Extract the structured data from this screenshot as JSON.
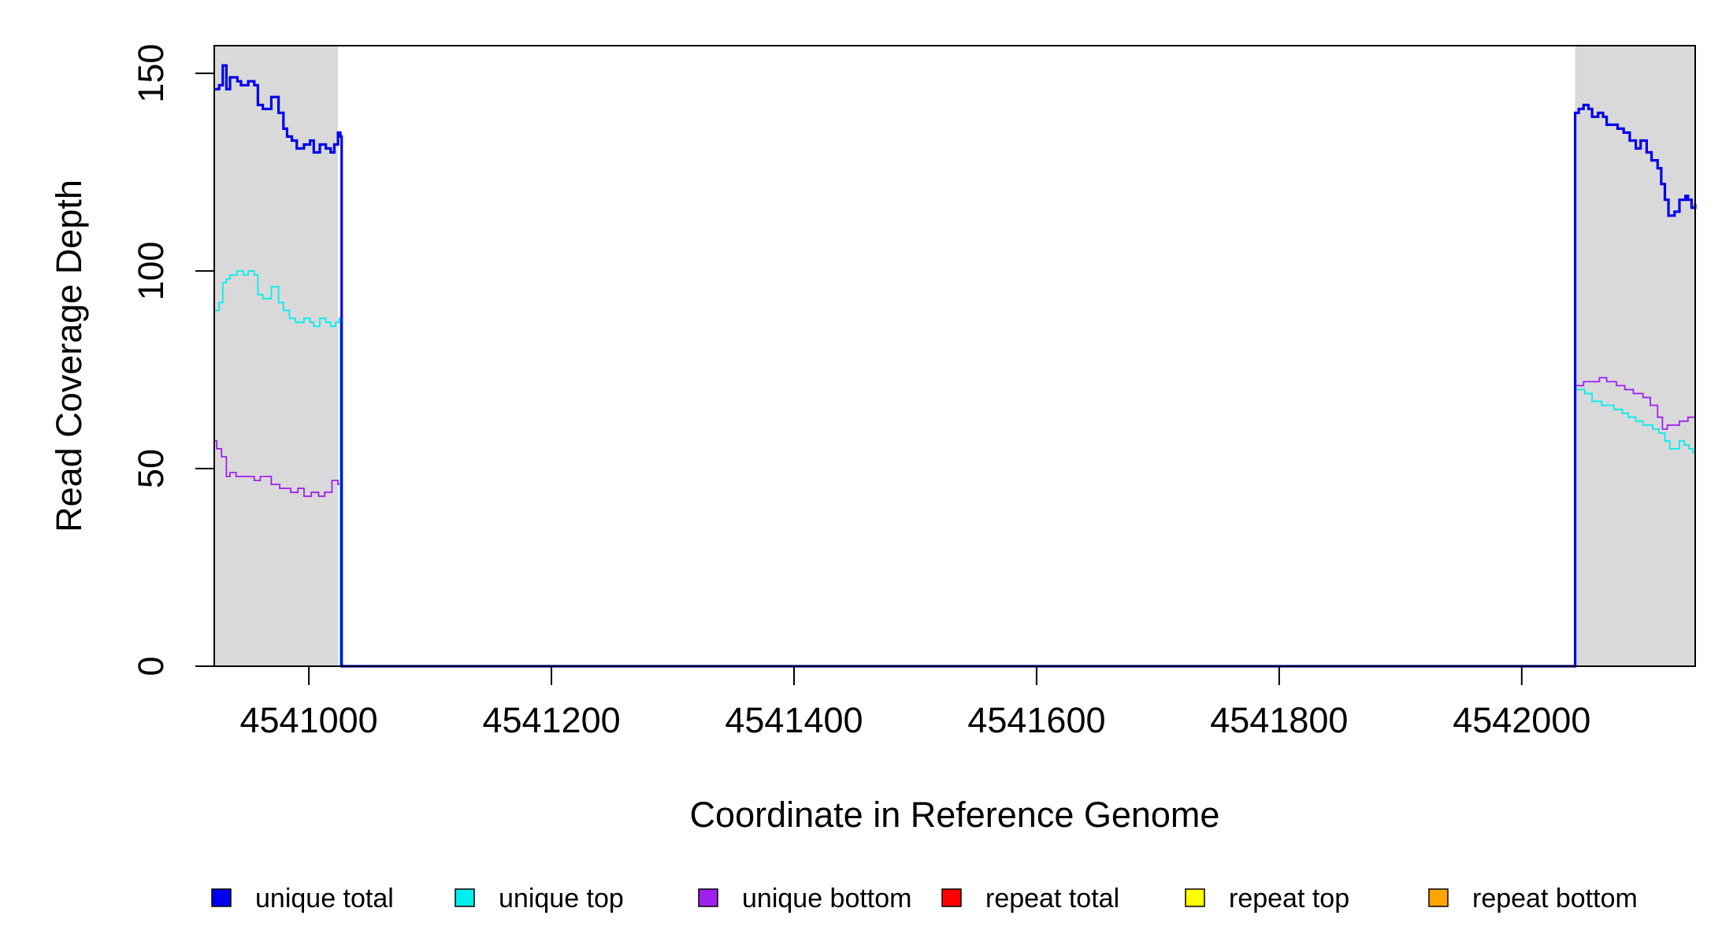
{
  "chart_data": {
    "type": "line",
    "title": "",
    "xlabel": "Coordinate in Reference Genome",
    "ylabel": "Read Coverage Depth",
    "xlim": [
      4540922,
      4542143
    ],
    "ylim": [
      0,
      157
    ],
    "x_ticks": [
      4541000,
      4541200,
      4541400,
      4541600,
      4541800,
      4542000
    ],
    "y_ticks": [
      0,
      50,
      100,
      150
    ],
    "shaded_regions": [
      {
        "from": 4540922,
        "to": 4541024,
        "color": "#d9d9d9"
      },
      {
        "from": 4542044,
        "to": 4542143,
        "color": "#d9d9d9"
      }
    ],
    "legend_position": "bottom",
    "series": [
      {
        "name": "unique total",
        "color": "#0000ee",
        "points": [
          [
            4540922,
            146
          ],
          [
            4540926,
            147
          ],
          [
            4540929,
            152
          ],
          [
            4540932,
            146
          ],
          [
            4540935,
            149
          ],
          [
            4540941,
            148
          ],
          [
            4540944,
            147
          ],
          [
            4540950,
            148
          ],
          [
            4540955,
            147
          ],
          [
            4540958,
            142
          ],
          [
            4540962,
            141
          ],
          [
            4540969,
            144
          ],
          [
            4540975,
            140
          ],
          [
            4540979,
            136
          ],
          [
            4540982,
            134
          ],
          [
            4540986,
            133
          ],
          [
            4540990,
            131
          ],
          [
            4540996,
            132
          ],
          [
            4541001,
            133
          ],
          [
            4541004,
            130
          ],
          [
            4541009,
            132
          ],
          [
            4541014,
            131
          ],
          [
            4541018,
            130
          ],
          [
            4541021,
            132
          ],
          [
            4541024,
            135
          ],
          [
            4541026,
            134
          ],
          [
            4541027,
            0
          ],
          [
            4542044,
            0
          ],
          [
            4542044,
            140
          ],
          [
            4542047,
            141
          ],
          [
            4542051,
            142
          ],
          [
            4542055,
            141
          ],
          [
            4542058,
            139
          ],
          [
            4542063,
            140
          ],
          [
            4542067,
            139
          ],
          [
            4542070,
            137
          ],
          [
            4542079,
            136
          ],
          [
            4542084,
            135
          ],
          [
            4542089,
            133
          ],
          [
            4542094,
            131
          ],
          [
            4542098,
            133
          ],
          [
            4542103,
            130
          ],
          [
            4542107,
            128
          ],
          [
            4542112,
            126
          ],
          [
            4542115,
            122
          ],
          [
            4542118,
            118
          ],
          [
            4542121,
            114
          ],
          [
            4542126,
            115
          ],
          [
            4542130,
            118
          ],
          [
            4542135,
            119
          ],
          [
            4542137,
            118
          ],
          [
            4542140,
            116
          ],
          [
            4542143,
            117
          ]
        ]
      },
      {
        "name": "unique top",
        "color": "#00eeee",
        "points": [
          [
            4540922,
            90
          ],
          [
            4540926,
            92
          ],
          [
            4540929,
            97
          ],
          [
            4540932,
            98
          ],
          [
            4540935,
            99
          ],
          [
            4540941,
            100
          ],
          [
            4540946,
            99
          ],
          [
            4540950,
            100
          ],
          [
            4540955,
            99
          ],
          [
            4540958,
            94
          ],
          [
            4540962,
            93
          ],
          [
            4540969,
            96
          ],
          [
            4540975,
            92
          ],
          [
            4540979,
            90
          ],
          [
            4540984,
            88
          ],
          [
            4540989,
            87
          ],
          [
            4540996,
            88
          ],
          [
            4541001,
            87
          ],
          [
            4541004,
            86
          ],
          [
            4541009,
            88
          ],
          [
            4541014,
            87
          ],
          [
            4541018,
            86
          ],
          [
            4541022,
            87
          ],
          [
            4541025,
            88
          ],
          [
            4541026,
            0
          ],
          [
            4542044,
            0
          ],
          [
            4542044,
            70
          ],
          [
            4542052,
            69
          ],
          [
            4542058,
            67
          ],
          [
            4542066,
            66
          ],
          [
            4542076,
            65
          ],
          [
            4542083,
            64
          ],
          [
            4542088,
            63
          ],
          [
            4542094,
            62
          ],
          [
            4542100,
            61
          ],
          [
            4542108,
            60
          ],
          [
            4542113,
            59
          ],
          [
            4542118,
            57
          ],
          [
            4542122,
            55
          ],
          [
            4542130,
            57
          ],
          [
            4542134,
            56
          ],
          [
            4542138,
            55
          ],
          [
            4542141,
            54
          ],
          [
            4542143,
            54
          ]
        ]
      },
      {
        "name": "unique bottom",
        "color": "#a020f0",
        "points": [
          [
            4540922,
            57
          ],
          [
            4540924,
            55
          ],
          [
            4540928,
            53
          ],
          [
            4540932,
            48
          ],
          [
            4540935,
            49
          ],
          [
            4540940,
            48
          ],
          [
            4540955,
            47
          ],
          [
            4540960,
            48
          ],
          [
            4540969,
            46
          ],
          [
            4540976,
            45
          ],
          [
            4540985,
            44
          ],
          [
            4540991,
            45
          ],
          [
            4540996,
            43
          ],
          [
            4541002,
            44
          ],
          [
            4541008,
            43
          ],
          [
            4541013,
            44
          ],
          [
            4541019,
            47
          ],
          [
            4541024,
            46
          ],
          [
            4541026,
            0
          ],
          [
            4542044,
            0
          ],
          [
            4542044,
            71
          ],
          [
            4542051,
            72
          ],
          [
            4542064,
            73
          ],
          [
            4542070,
            72
          ],
          [
            4542078,
            71
          ],
          [
            4542085,
            70
          ],
          [
            4542092,
            69
          ],
          [
            4542100,
            68
          ],
          [
            4542106,
            66
          ],
          [
            4542112,
            63
          ],
          [
            4542116,
            60
          ],
          [
            4542120,
            61
          ],
          [
            4542130,
            62
          ],
          [
            4542137,
            63
          ],
          [
            4542143,
            62
          ]
        ]
      },
      {
        "name": "repeat total",
        "color": "#ff0000",
        "points": [
          [
            4540922,
            0
          ],
          [
            4542143,
            0
          ]
        ]
      },
      {
        "name": "repeat top",
        "color": "#ffff00",
        "points": [
          [
            4540922,
            0
          ],
          [
            4542143,
            0
          ]
        ]
      },
      {
        "name": "repeat bottom",
        "color": "#ffa500",
        "points": [
          [
            4540922,
            0
          ],
          [
            4542143,
            0
          ]
        ]
      }
    ]
  }
}
